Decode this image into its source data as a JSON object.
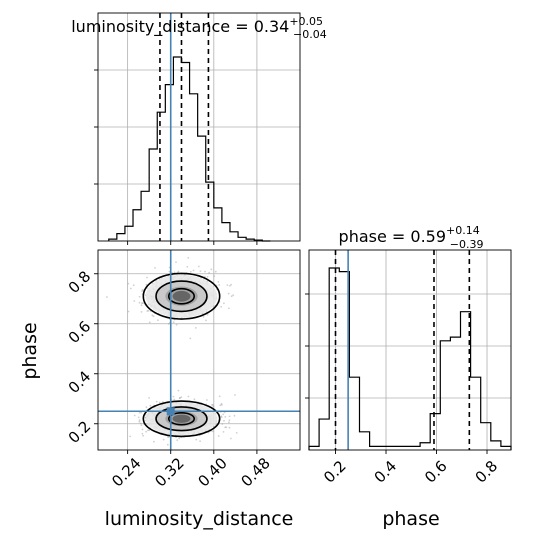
{
  "chart_data": [
    {
      "type": "histogram",
      "panel": "marginal-luminosity_distance",
      "title": {
        "param": "luminosity_distance",
        "eq": " = ",
        "median": "0.34",
        "plus": "+0.05",
        "minus": "−0.04"
      },
      "xlim": [
        0.185,
        0.56
      ],
      "bins": [
        0.205,
        0.22,
        0.235,
        0.25,
        0.265,
        0.28,
        0.295,
        0.31,
        0.325,
        0.34,
        0.355,
        0.37,
        0.385,
        0.4,
        0.415,
        0.43,
        0.445,
        0.46,
        0.475,
        0.49,
        0.505
      ],
      "counts": [
        0.01,
        0.04,
        0.08,
        0.17,
        0.27,
        0.5,
        0.7,
        0.85,
        1.0,
        0.97,
        0.8,
        0.57,
        0.32,
        0.18,
        0.1,
        0.05,
        0.02,
        0.01,
        0.005,
        0
      ],
      "quantiles": [
        0.3,
        0.34,
        0.39
      ],
      "truth": 0.32,
      "grid": true
    },
    {
      "type": "histogram",
      "panel": "marginal-phase",
      "title": {
        "param": "phase",
        "eq": " = ",
        "median": "0.59",
        "plus": "+0.14",
        "minus": "−0.39"
      },
      "xlim": [
        0.095,
        0.895
      ],
      "bins": [
        0.095,
        0.135,
        0.175,
        0.215,
        0.255,
        0.295,
        0.335,
        0.375,
        0.415,
        0.455,
        0.495,
        0.535,
        0.575,
        0.615,
        0.655,
        0.695,
        0.735,
        0.775,
        0.815,
        0.855,
        0.895
      ],
      "counts": [
        0.02,
        0.17,
        1.0,
        0.98,
        0.4,
        0.1,
        0.02,
        0.02,
        0.02,
        0.02,
        0.02,
        0.04,
        0.2,
        0.6,
        0.62,
        0.76,
        0.4,
        0.15,
        0.05,
        0.02
      ],
      "quantiles": [
        0.2,
        0.59,
        0.73
      ],
      "truth": 0.25,
      "xticks": [
        "0.2",
        "0.4",
        "0.6",
        "0.8"
      ],
      "xlabel": "phase",
      "grid": true
    },
    {
      "type": "scatter",
      "panel": "joint",
      "xlim": [
        0.185,
        0.56
      ],
      "ylim": [
        0.095,
        0.895
      ],
      "xticks": [
        "0.24",
        "0.32",
        "0.40",
        "0.48"
      ],
      "yticks": [
        "0.2",
        "0.4",
        "0.6",
        "0.8"
      ],
      "xlabel": "luminosity_distance",
      "ylabel": "phase",
      "truth": [
        0.32,
        0.25
      ],
      "modes": [
        {
          "x": 0.34,
          "y": 0.71,
          "sx": 0.035,
          "sy": 0.045
        },
        {
          "x": 0.34,
          "y": 0.22,
          "sx": 0.035,
          "sy": 0.035
        }
      ],
      "contour_levels": [
        0.5,
        1.0,
        1.5
      ],
      "grid": true
    }
  ]
}
